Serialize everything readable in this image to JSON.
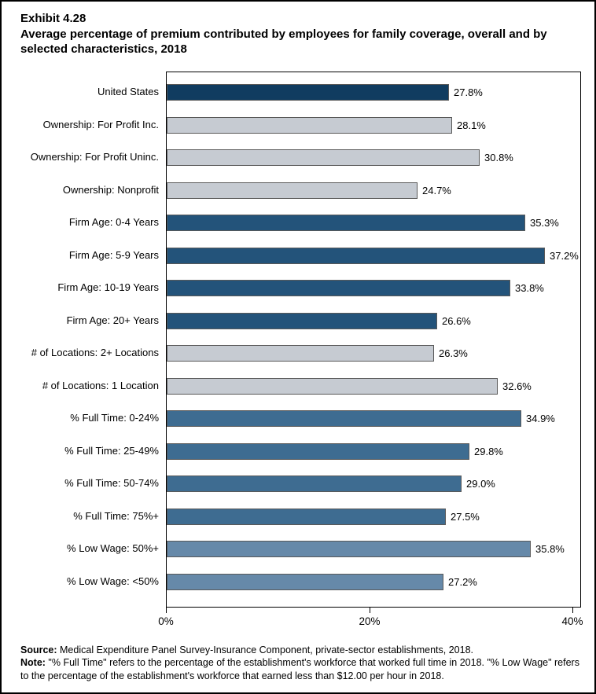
{
  "exhibit": {
    "label": "Exhibit 4.28",
    "title": "Average percentage of premium contributed by employees for family coverage, overall and by selected characteristics, 2018"
  },
  "chart_data": {
    "type": "bar",
    "orientation": "horizontal",
    "title": "Average percentage of premium contributed by employees for family coverage, overall and by selected characteristics, 2018",
    "xlabel": "",
    "ylabel": "",
    "xlim": [
      0,
      40
    ],
    "x_tick_values": [
      0,
      20,
      40
    ],
    "x_tick_labels": [
      "0%",
      "20%",
      "40%"
    ],
    "grid": false,
    "legend": "none",
    "bars": [
      {
        "label": "United States",
        "value": 27.8,
        "value_label": "27.8%",
        "group": "national"
      },
      {
        "label": "Ownership: For Profit Inc.",
        "value": 28.1,
        "value_label": "28.1%",
        "group": "gray"
      },
      {
        "label": "Ownership: For Profit Uninc.",
        "value": 30.8,
        "value_label": "30.8%",
        "group": "gray"
      },
      {
        "label": "Ownership: Nonprofit",
        "value": 24.7,
        "value_label": "24.7%",
        "group": "gray"
      },
      {
        "label": "Firm Age: 0-4 Years",
        "value": 35.3,
        "value_label": "35.3%",
        "group": "firm_age"
      },
      {
        "label": "Firm Age: 5-9 Years",
        "value": 37.2,
        "value_label": "37.2%",
        "group": "firm_age"
      },
      {
        "label": "Firm Age: 10-19 Years",
        "value": 33.8,
        "value_label": "33.8%",
        "group": "firm_age"
      },
      {
        "label": "Firm Age: 20+ Years",
        "value": 26.6,
        "value_label": "26.6%",
        "group": "firm_age"
      },
      {
        "label": "# of Locations: 2+ Locations",
        "value": 26.3,
        "value_label": "26.3%",
        "group": "gray"
      },
      {
        "label": "# of Locations: 1 Location",
        "value": 32.6,
        "value_label": "32.6%",
        "group": "gray"
      },
      {
        "label": "% Full Time: 0-24%",
        "value": 34.9,
        "value_label": "34.9%",
        "group": "full_time"
      },
      {
        "label": "% Full Time: 25-49%",
        "value": 29.8,
        "value_label": "29.8%",
        "group": "full_time"
      },
      {
        "label": "% Full Time: 50-74%",
        "value": 29.0,
        "value_label": "29.0%",
        "group": "full_time"
      },
      {
        "label": "% Full Time: 75%+",
        "value": 27.5,
        "value_label": "27.5%",
        "group": "full_time"
      },
      {
        "label": "% Low Wage: 50%+",
        "value": 35.8,
        "value_label": "35.8%",
        "group": "low_wage"
      },
      {
        "label": "% Low Wage: <50%",
        "value": 27.2,
        "value_label": "27.2%",
        "group": "low_wage"
      }
    ],
    "group_colors": {
      "national": "#103C60",
      "gray": "#C6CBD2",
      "firm_age": "#23537A",
      "full_time": "#3E6C91",
      "low_wage": "#6689A9"
    },
    "bar_border_color": "#595959",
    "axis_color": "#000000"
  },
  "footnotes": {
    "source_label": "Source:",
    "source_text": " Medical Expenditure Panel Survey-Insurance Component, private-sector establishments, 2018.",
    "note_label": "Note:",
    "note_text": " \"% Full Time\" refers to the percentage of the establishment's workforce that worked full time in 2018. \"% Low Wage\" refers to the percentage of the establishment's workforce that earned less than $12.00 per hour in 2018."
  }
}
